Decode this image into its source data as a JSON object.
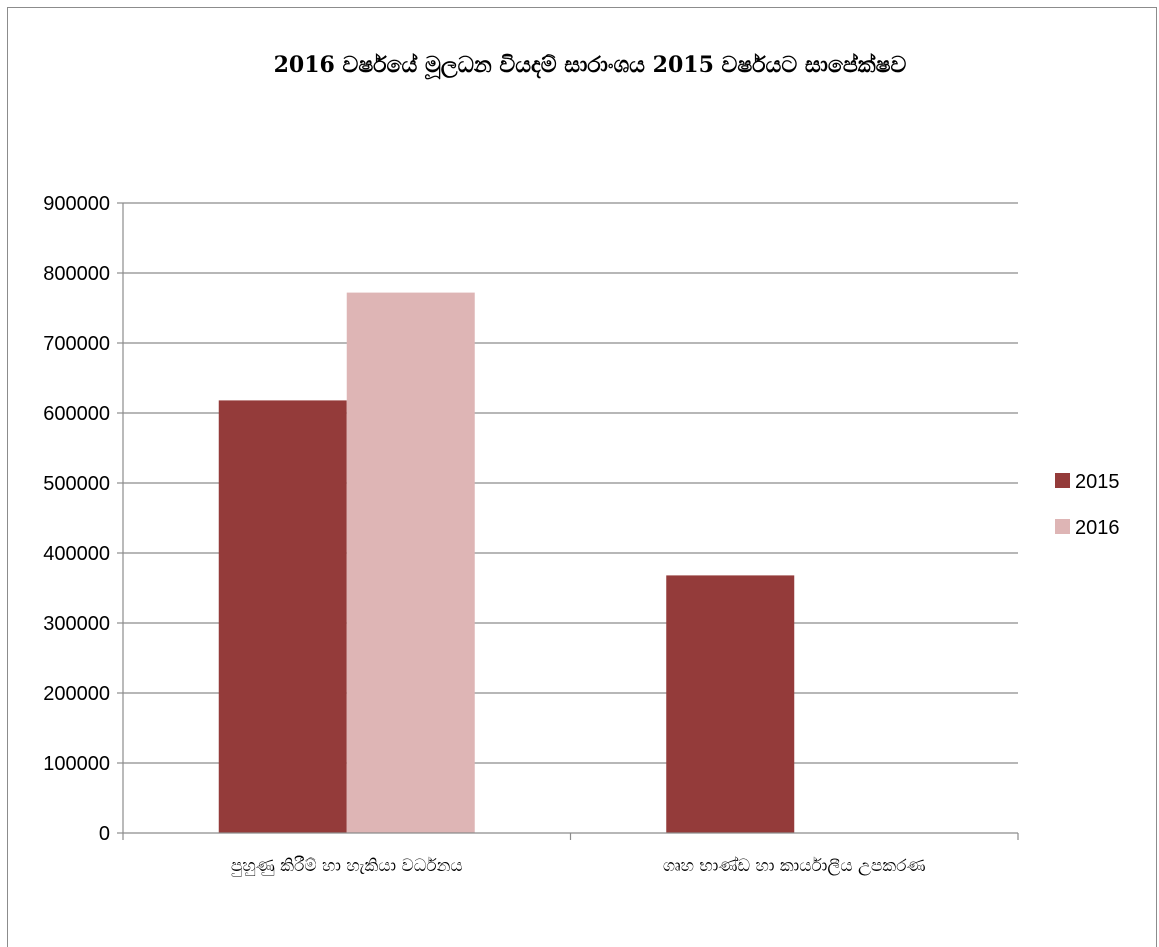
{
  "chart_data": {
    "type": "bar",
    "title": "2016 වර්ෂයේ මූලධන වියදම් සාරාංශය 2015 වර්ෂයට සාපේක්ෂව",
    "xlabel": "",
    "ylabel": "",
    "categories": [
      "පුහුණු කිරීම් හා හැකියා වර්ධනය",
      "ගෘහ භාණ්ඩ හා කාර්යාලීය උපකරණ"
    ],
    "series": [
      {
        "name": "2015",
        "values": [
          618000,
          368000
        ],
        "color": "#943B3A"
      },
      {
        "name": "2016",
        "values": [
          772000,
          0
        ],
        "color": "#DEB5B5"
      }
    ],
    "ylim": [
      0,
      900000
    ],
    "yticks": [
      0,
      100000,
      200000,
      300000,
      400000,
      500000,
      600000,
      700000,
      800000,
      900000
    ],
    "grid": true,
    "legend": "right"
  }
}
